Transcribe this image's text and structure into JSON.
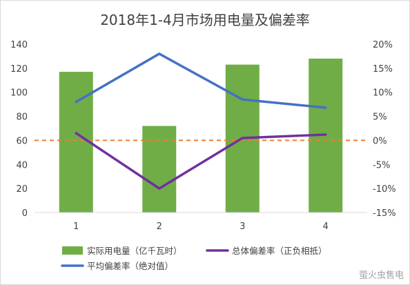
{
  "chart_data": {
    "type": "bar",
    "title": "2018年1-4月市场用电量及偏差率",
    "categories": [
      "1",
      "2",
      "3",
      "4"
    ],
    "y_left": {
      "ylim": [
        0,
        140
      ],
      "ticks": [
        "0",
        "20",
        "40",
        "60",
        "80",
        "100",
        "120",
        "140"
      ]
    },
    "y_right": {
      "ylim": [
        -15,
        20
      ],
      "ticks": [
        "-15%",
        "-10%",
        "-5%",
        "0%",
        "5%",
        "10%",
        "15%",
        "20%"
      ]
    },
    "series": [
      {
        "name": "实际用电量（亿千瓦时）",
        "type": "bar",
        "axis": "left",
        "color": "#70ad47",
        "values": [
          117,
          72,
          123,
          128
        ]
      },
      {
        "name": "总体偏差率（正负相抵）",
        "type": "line",
        "axis": "right",
        "color": "#7030a0",
        "values": [
          1.5,
          -10,
          0.5,
          1.2
        ]
      },
      {
        "name": "平均偏差率（绝对值）",
        "type": "line",
        "axis": "right",
        "color": "#4472c4",
        "values": [
          8,
          18,
          8.5,
          6.8
        ]
      }
    ],
    "reference_line": {
      "value": 0,
      "axis": "right",
      "style": "dashed",
      "color": "#ed7d31"
    },
    "grid": false,
    "legend_position": "bottom"
  },
  "watermark": "萤火虫售电"
}
